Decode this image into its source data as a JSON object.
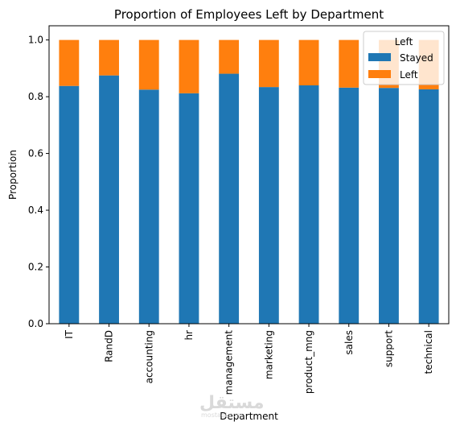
{
  "chart_data": {
    "type": "bar",
    "stacked": true,
    "title": "Proportion of Employees Left by Department",
    "xlabel": "Department",
    "ylabel": "Proportion",
    "categories": [
      "IT",
      "RandD",
      "accounting",
      "hr",
      "management",
      "marketing",
      "product_mng",
      "sales",
      "support",
      "technical"
    ],
    "series": [
      {
        "name": "Stayed",
        "color": "#1f77b4",
        "values": [
          0.838,
          0.875,
          0.825,
          0.812,
          0.881,
          0.834,
          0.84,
          0.832,
          0.831,
          0.826
        ]
      },
      {
        "name": "Left",
        "color": "#ff7f0e",
        "values": [
          0.162,
          0.125,
          0.175,
          0.188,
          0.119,
          0.166,
          0.16,
          0.168,
          0.169,
          0.174
        ]
      }
    ],
    "ylim": [
      0,
      1.05
    ],
    "yticks": [
      "0.0",
      "0.2",
      "0.4",
      "0.6",
      "0.8",
      "1.0"
    ],
    "legend": {
      "title": "Left",
      "position": "top-right"
    },
    "grid": false
  },
  "watermark": {
    "text": "مستقل",
    "subtext": "mostaql.com"
  }
}
